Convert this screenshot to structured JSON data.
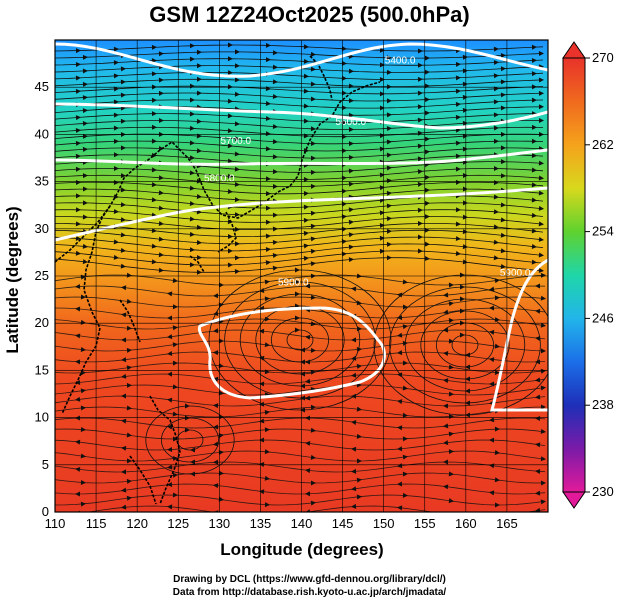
{
  "title": "GSM 12Z24Oct2025 (500.0hPa)",
  "map": {
    "xlabel": "Longitude (degrees)",
    "ylabel": "Latitude  (degrees)",
    "x_ticks": [
      "110",
      "115",
      "120",
      "125",
      "130",
      "135",
      "140",
      "145",
      "150",
      "155",
      "160",
      "165"
    ],
    "y_ticks": [
      "0",
      "5",
      "10",
      "15",
      "20",
      "25",
      "30",
      "35",
      "40",
      "45"
    ],
    "lon_range": [
      110,
      170
    ],
    "lat_range": [
      0,
      50
    ],
    "contours": [
      {
        "label": "5400.0",
        "lon": 152,
        "lat": 47.5
      },
      {
        "label": "5600.0",
        "lon": 146,
        "lat": 41
      },
      {
        "label": "5700.0",
        "lon": 132,
        "lat": 39
      },
      {
        "label": "5800.0",
        "lon": 130,
        "lat": 35
      },
      {
        "label": "5900.0",
        "lon": 139,
        "lat": 24
      },
      {
        "label": "5900.0",
        "lon": 166,
        "lat": 25
      }
    ]
  },
  "colorbar": {
    "labels": [
      "270",
      "262",
      "254",
      "246",
      "238",
      "230"
    ],
    "min": 230,
    "max": 270
  },
  "credits": {
    "line1": "Drawing by DCL (https://www.gfd-dennou.org/library/dcl/)",
    "line2": "Data from http://database.rish.kyoto-u.ac.jp/arch/jmadata/"
  }
}
